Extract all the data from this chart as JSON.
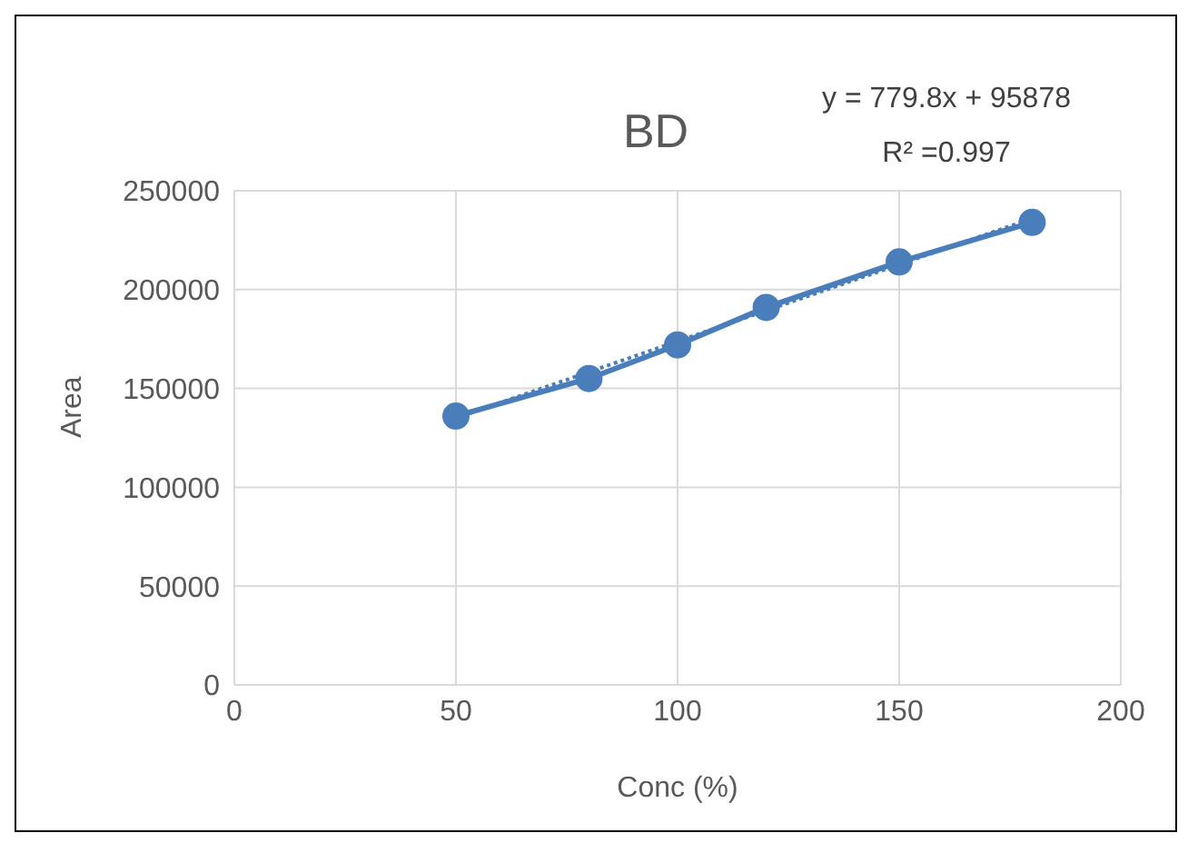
{
  "chart_data": {
    "type": "line",
    "title": "BD",
    "xlabel": "Conc (%)",
    "ylabel": "Area",
    "annotations": [
      "y = 779.8x + 95878",
      "R² =0.997"
    ],
    "x": [
      50,
      80,
      100,
      120,
      150,
      180
    ],
    "series": [
      {
        "color": "#4a7ebb",
        "values": [
          136000,
          155000,
          172000,
          191000,
          214000,
          234000
        ],
        "marker": "circle",
        "line_style": "solid"
      },
      {
        "type": "line",
        "x": [
          50,
          180
        ],
        "color": "#4a7ebb",
        "values": [
          135000,
          236000
        ],
        "marker": "none",
        "line_style": "dotted"
      }
    ],
    "xlim": [
      0,
      200
    ],
    "xticks": [
      0,
      50,
      100,
      150,
      200
    ],
    "ylim": [
      0,
      250000
    ],
    "yticks": [
      0,
      50000,
      100000,
      150000,
      200000,
      250000
    ],
    "grid": true
  }
}
